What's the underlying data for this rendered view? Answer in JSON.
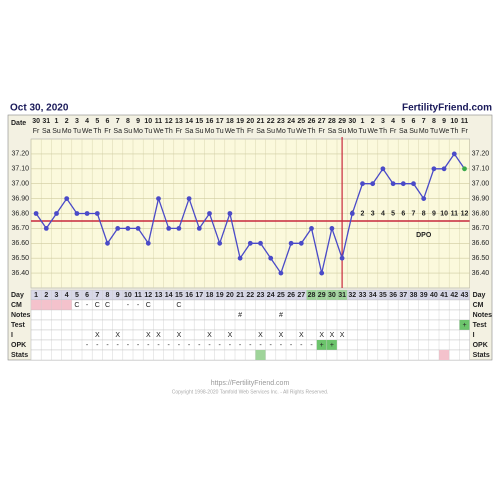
{
  "header": {
    "date": "Oct 30, 2020",
    "site": "FertilityFriend.com"
  },
  "chart_data": {
    "type": "line",
    "dates_label": "Date",
    "dates": [
      "30",
      "31",
      "1",
      "2",
      "3",
      "4",
      "5",
      "6",
      "7",
      "8",
      "9",
      "10",
      "11",
      "12",
      "13",
      "14",
      "15",
      "16",
      "17",
      "18",
      "19",
      "20",
      "21",
      "22",
      "23",
      "24",
      "25",
      "26",
      "27",
      "28",
      "29",
      "30",
      "1",
      "2",
      "3",
      "4",
      "5",
      "6",
      "7",
      "8",
      "9",
      "10",
      "11"
    ],
    "weekdays": [
      "Fr",
      "Sa",
      "Su",
      "Mo",
      "Tu",
      "We",
      "Th",
      "Fr",
      "Sa",
      "Su",
      "Mo",
      "Tu",
      "We",
      "Th",
      "Fr",
      "Sa",
      "Su",
      "Mo",
      "Tu",
      "We",
      "Th",
      "Fr",
      "Sa",
      "Su",
      "Mo",
      "Tu",
      "We",
      "Th",
      "Fr",
      "Sa",
      "Su",
      "Mo",
      "Tu",
      "We",
      "Th",
      "Fr",
      "Sa",
      "Su",
      "Mo",
      "Tu",
      "We",
      "Th",
      "Fr"
    ],
    "values": [
      36.8,
      36.7,
      36.8,
      36.9,
      36.8,
      36.8,
      36.8,
      36.6,
      36.7,
      36.7,
      36.7,
      36.6,
      36.9,
      36.7,
      36.7,
      36.9,
      36.7,
      36.8,
      36.6,
      36.8,
      36.5,
      36.6,
      36.6,
      36.5,
      36.4,
      36.6,
      36.6,
      36.7,
      36.4,
      36.7,
      36.5,
      36.8,
      37.0,
      37.0,
      37.1,
      37.0,
      37.0,
      37.0,
      36.9,
      37.1,
      37.1,
      37.2,
      37.1
    ],
    "color": "#4a4ac8",
    "last_point_color": "#3aa84a",
    "ylim": [
      36.3,
      37.3
    ],
    "yticks": [
      {
        "value": 36.4,
        "label": "36.40"
      },
      {
        "value": 36.5,
        "label": "36.50"
      },
      {
        "value": 36.6,
        "label": "36.60"
      },
      {
        "value": 36.7,
        "label": "36.70"
      },
      {
        "value": 36.8,
        "label": "36.80"
      },
      {
        "value": 36.9,
        "label": "36.90"
      },
      {
        "value": 37.0,
        "label": "37.00"
      },
      {
        "value": 37.1,
        "label": "37.10"
      },
      {
        "value": 37.2,
        "label": "37.20"
      }
    ],
    "grid": true,
    "coverline": 36.75,
    "ovulation_day": 31,
    "line_color": "#c8283c",
    "dpo_label": "DPO",
    "dpo": [
      1,
      2,
      3,
      4,
      5,
      6,
      7,
      8,
      9,
      10,
      11,
      12
    ]
  },
  "rows": [
    {
      "label": "Day",
      "cells": [
        1,
        2,
        3,
        4,
        5,
        6,
        7,
        8,
        9,
        10,
        11,
        12,
        13,
        14,
        15,
        16,
        17,
        18,
        19,
        20,
        21,
        22,
        23,
        24,
        25,
        26,
        27,
        28,
        29,
        30,
        31,
        32,
        33,
        34,
        35,
        36,
        37,
        38,
        39,
        40,
        41,
        42,
        43
      ],
      "highlights": [
        {
          "days": [
            28,
            29,
            30,
            31
          ],
          "color": "#9fd49a"
        }
      ]
    },
    {
      "label": "CM",
      "cells": [
        null,
        null,
        null,
        null,
        "C",
        "-",
        "C",
        "C",
        null,
        "-",
        "-",
        "C",
        null,
        null,
        "C",
        null,
        null,
        null,
        null,
        null,
        null,
        null,
        null,
        null,
        null,
        null,
        null,
        null,
        null,
        null,
        null,
        null,
        null,
        null,
        null,
        null,
        null,
        null,
        null,
        null,
        null,
        null,
        null
      ],
      "highlights": [
        {
          "days": [
            1,
            2,
            3,
            4
          ],
          "color": "#f4c2cc"
        }
      ]
    },
    {
      "label": "Notes",
      "cells": [
        null,
        null,
        null,
        null,
        null,
        null,
        null,
        null,
        null,
        null,
        null,
        null,
        null,
        null,
        null,
        null,
        null,
        null,
        null,
        null,
        "#",
        null,
        null,
        null,
        "#",
        null,
        null,
        null,
        null,
        null,
        null,
        null,
        null,
        null,
        null,
        null,
        null,
        null,
        null,
        null,
        null,
        null,
        null
      ],
      "highlights": []
    },
    {
      "label": "Test",
      "cells": [
        null,
        null,
        null,
        null,
        null,
        null,
        null,
        null,
        null,
        null,
        null,
        null,
        null,
        null,
        null,
        null,
        null,
        null,
        null,
        null,
        null,
        null,
        null,
        null,
        null,
        null,
        null,
        null,
        null,
        null,
        null,
        null,
        null,
        null,
        null,
        null,
        null,
        null,
        null,
        null,
        null,
        null,
        "+"
      ],
      "highlights": [
        {
          "days": [
            43
          ],
          "color": "#6cc46c"
        }
      ]
    },
    {
      "label": "I",
      "cells": [
        null,
        null,
        null,
        null,
        null,
        null,
        "X",
        null,
        "X",
        null,
        null,
        "X",
        "X",
        null,
        "X",
        null,
        null,
        "X",
        null,
        "X",
        null,
        null,
        "X",
        null,
        "X",
        null,
        "X",
        null,
        "X",
        "X",
        "X",
        null,
        null,
        null,
        null,
        null,
        null,
        null,
        null,
        null,
        null,
        null,
        null
      ],
      "highlights": []
    },
    {
      "label": "OPK",
      "cells": [
        null,
        null,
        null,
        null,
        null,
        "-",
        "-",
        "-",
        "-",
        "-",
        "-",
        "-",
        "-",
        "-",
        "-",
        "-",
        "-",
        "-",
        "-",
        "-",
        "-",
        "-",
        "-",
        "-",
        "-",
        "-",
        "-",
        "-",
        "+",
        "+",
        null,
        null,
        null,
        null,
        null,
        null,
        null,
        null,
        null,
        null,
        null,
        null,
        null
      ],
      "highlights": [
        {
          "days": [
            29,
            30
          ],
          "color": "#6cc46c"
        }
      ]
    },
    {
      "label": "Stats",
      "highlights": [
        {
          "days": [
            23
          ],
          "color": "#9fd49a"
        },
        {
          "days": [
            41
          ],
          "color": "#f4c2cc"
        }
      ]
    }
  ],
  "footer": {
    "url": "https://FertilityFriend.com",
    "copyright": "Copyright 1998-2020 Tamfold Web Services Inc. - All Rights Reserved."
  }
}
